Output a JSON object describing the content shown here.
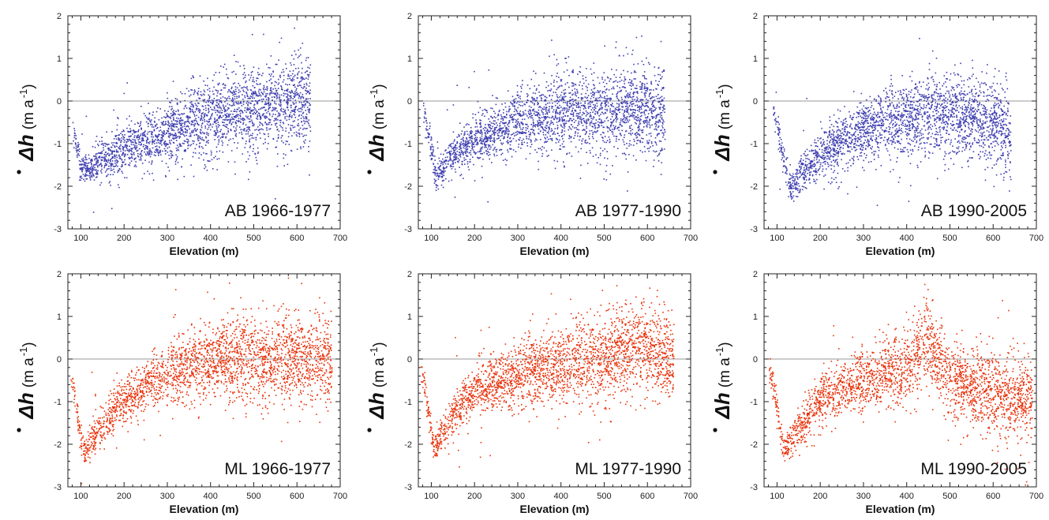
{
  "colors": {
    "AB": "#3f3fb0",
    "ML": "#e8320a",
    "zero_line": "#9a9a9a",
    "frame": "#222222"
  },
  "chart_data": [
    {
      "type": "scatter",
      "panel_label": "AB 1966-1977",
      "xlabel": "Elevation (m)",
      "ylabel_symbol": "Δh",
      "ylabel_unit": "(m a",
      "ylabel_exp": "-1",
      "ylabel_close": ")",
      "xlim": [
        70,
        700
      ],
      "ylim": [
        -3,
        2
      ],
      "xticks": [
        "100",
        "200",
        "300",
        "400",
        "500",
        "600",
        "700"
      ],
      "yticks": [
        "-3",
        "-2",
        "-1",
        "0",
        "1",
        "2"
      ],
      "color": "AB",
      "trend": [
        [
          80,
          -0.6
        ],
        [
          100,
          -1.6
        ],
        [
          130,
          -1.5
        ],
        [
          200,
          -1.1
        ],
        [
          300,
          -0.7
        ],
        [
          400,
          -0.35
        ],
        [
          500,
          -0.1
        ],
        [
          600,
          0.0
        ],
        [
          630,
          -0.1
        ]
      ],
      "notes": "dense scatter of thousands of points following the trend; spread ~±0.4 m/a, outliers from -2.8 to 1.6"
    },
    {
      "type": "scatter",
      "panel_label": "AB 1977-1990",
      "xlabel": "Elevation (m)",
      "ylabel_symbol": "Δh",
      "ylabel_unit": "(m a",
      "ylabel_exp": "-1",
      "ylabel_close": ")",
      "xlim": [
        70,
        700
      ],
      "ylim": [
        -3,
        2
      ],
      "xticks": [
        "100",
        "200",
        "300",
        "400",
        "500",
        "600",
        "700"
      ],
      "yticks": [
        "-3",
        "-2",
        "-1",
        "0",
        "1",
        "2"
      ],
      "color": "AB",
      "trend": [
        [
          80,
          -0.1
        ],
        [
          110,
          -1.8
        ],
        [
          140,
          -1.3
        ],
        [
          200,
          -0.9
        ],
        [
          300,
          -0.45
        ],
        [
          400,
          -0.25
        ],
        [
          500,
          -0.2
        ],
        [
          600,
          -0.2
        ],
        [
          640,
          -0.3
        ]
      ],
      "notes": "dense scatter; local dips near 355 m and 400 m reaching about -1.5 to -2"
    },
    {
      "type": "scatter",
      "panel_label": "AB 1990-2005",
      "xlabel": "Elevation (m)",
      "ylabel_symbol": "Δh",
      "ylabel_unit": "(m a",
      "ylabel_exp": "-1",
      "ylabel_close": ")",
      "xlim": [
        70,
        700
      ],
      "ylim": [
        -3,
        2
      ],
      "xticks": [
        "100",
        "200",
        "300",
        "400",
        "500",
        "600",
        "700"
      ],
      "yticks": [
        "-3",
        "-2",
        "-1",
        "0",
        "1",
        "2"
      ],
      "color": "AB",
      "trend": [
        [
          90,
          -0.2
        ],
        [
          130,
          -2.0
        ],
        [
          170,
          -1.5
        ],
        [
          250,
          -0.9
        ],
        [
          350,
          -0.45
        ],
        [
          450,
          -0.3
        ],
        [
          500,
          -0.25
        ],
        [
          600,
          -0.5
        ],
        [
          640,
          -0.8
        ]
      ],
      "notes": "dense scatter; positive cluster near 400-430 m up to about 0.8"
    },
    {
      "type": "scatter",
      "panel_label": "ML 1966-1977",
      "xlabel": "Elevation (m)",
      "ylabel_symbol": "Δh",
      "ylabel_unit": "(m a",
      "ylabel_exp": "-1",
      "ylabel_close": ")",
      "xlim": [
        70,
        700
      ],
      "ylim": [
        -3,
        2
      ],
      "xticks": [
        "100",
        "200",
        "300",
        "400",
        "500",
        "600",
        "700"
      ],
      "yticks": [
        "-3",
        "-2",
        "-1",
        "0",
        "1",
        "2"
      ],
      "color": "ML",
      "trend": [
        [
          75,
          -0.3
        ],
        [
          105,
          -2.2
        ],
        [
          150,
          -1.5
        ],
        [
          200,
          -0.95
        ],
        [
          300,
          -0.3
        ],
        [
          400,
          0.0
        ],
        [
          500,
          0.0
        ],
        [
          600,
          0.0
        ],
        [
          680,
          0.0
        ]
      ],
      "notes": "dense scatter; wide spread above 400 m from about -1 to 1.4"
    },
    {
      "type": "scatter",
      "panel_label": "ML 1977-1990",
      "xlabel": "Elevation (m)",
      "ylabel_symbol": "Δh",
      "ylabel_unit": "(m a",
      "ylabel_exp": "-1",
      "ylabel_close": ")",
      "xlim": [
        70,
        700
      ],
      "ylim": [
        -3,
        2
      ],
      "xticks": [
        "100",
        "200",
        "300",
        "400",
        "500",
        "600",
        "700"
      ],
      "yticks": [
        "-3",
        "-2",
        "-1",
        "0",
        "1",
        "2"
      ],
      "color": "ML",
      "trend": [
        [
          75,
          -0.1
        ],
        [
          105,
          -2.1
        ],
        [
          150,
          -1.3
        ],
        [
          200,
          -0.7
        ],
        [
          300,
          -0.35
        ],
        [
          400,
          -0.1
        ],
        [
          500,
          0.0
        ],
        [
          560,
          0.3
        ],
        [
          660,
          0.0
        ]
      ],
      "notes": "dense scatter; dip near 465 m to about -1.3, peak near 560 m up to about 1.8"
    },
    {
      "type": "scatter",
      "panel_label": "ML 1990-2005",
      "xlabel": "Elevation (m)",
      "ylabel_symbol": "Δh",
      "ylabel_unit": "(m a",
      "ylabel_exp": "-1",
      "ylabel_close": ")",
      "xlim": [
        70,
        700
      ],
      "ylim": [
        -3,
        2
      ],
      "xticks": [
        "100",
        "200",
        "300",
        "400",
        "500",
        "600",
        "700"
      ],
      "yticks": [
        "-3",
        "-2",
        "-1",
        "0",
        "1",
        "2"
      ],
      "color": "ML",
      "trend": [
        [
          80,
          -0.1
        ],
        [
          115,
          -2.1
        ],
        [
          160,
          -1.5
        ],
        [
          200,
          -0.9
        ],
        [
          300,
          -0.5
        ],
        [
          400,
          -0.2
        ],
        [
          450,
          0.4
        ],
        [
          500,
          -0.5
        ],
        [
          600,
          -0.8
        ],
        [
          690,
          -1.0
        ]
      ],
      "notes": "dense scatter; sharp peak near 450 m up to about 1.0"
    }
  ]
}
